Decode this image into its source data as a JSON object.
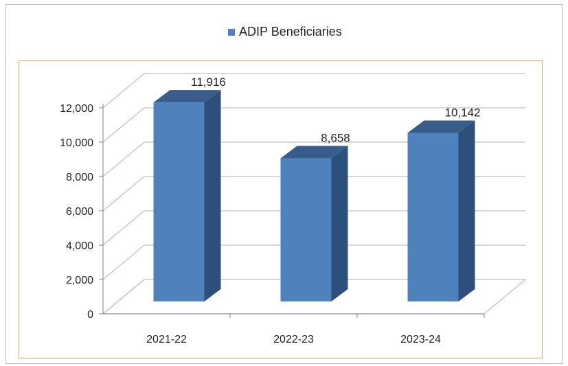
{
  "chart_data": {
    "type": "bar",
    "categories": [
      "2021-22",
      "2022-23",
      "2023-24"
    ],
    "series": [
      {
        "name": "ADIP Beneficiaries",
        "values": [
          11916,
          8658,
          10142
        ]
      }
    ],
    "data_labels": [
      "11,916",
      "8,658",
      "10,142"
    ],
    "ylim": [
      0,
      12000
    ],
    "yticks": [
      "0",
      "2,000",
      "4,000",
      "6,000",
      "8,000",
      "10,000",
      "12,000"
    ],
    "grid": true,
    "legend_position": "top",
    "style": "3d-column",
    "colors": {
      "bar_front": "#4f81bd",
      "bar_side": "#2c4f7c",
      "bar_top": "#385d8a",
      "grid": "#bfbfbf",
      "axis": "#7f7f7f",
      "plot_border": "#f0a060"
    }
  }
}
